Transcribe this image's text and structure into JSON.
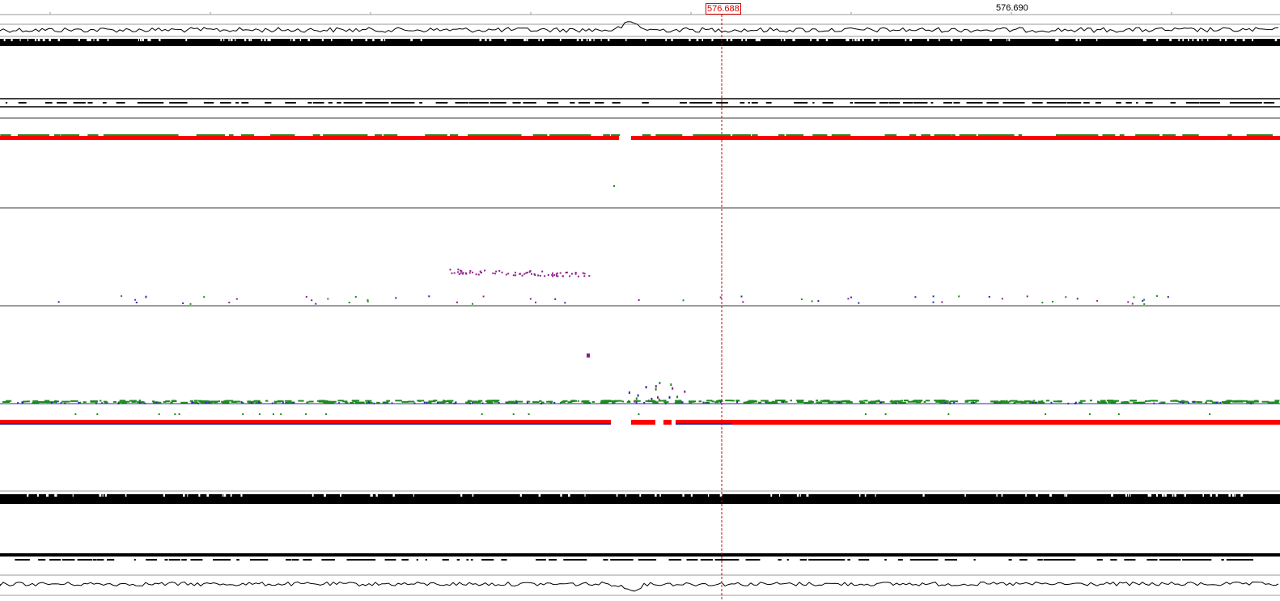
{
  "ruler": {
    "cursor_position": "576.688",
    "next_tick_label": "576.690"
  },
  "colors": {
    "background": "#ffffff",
    "track_black": "#000000",
    "cursor_line": "#d40000",
    "bar_red": "#ff0000",
    "bar_green": "#1e8c1e",
    "mark_blue": "#2a2aa8",
    "mark_purple": "#8c1e8c",
    "separator": "#9a9a9a"
  },
  "icons": {
    "cursor_line": "dashed-vertical-line"
  }
}
